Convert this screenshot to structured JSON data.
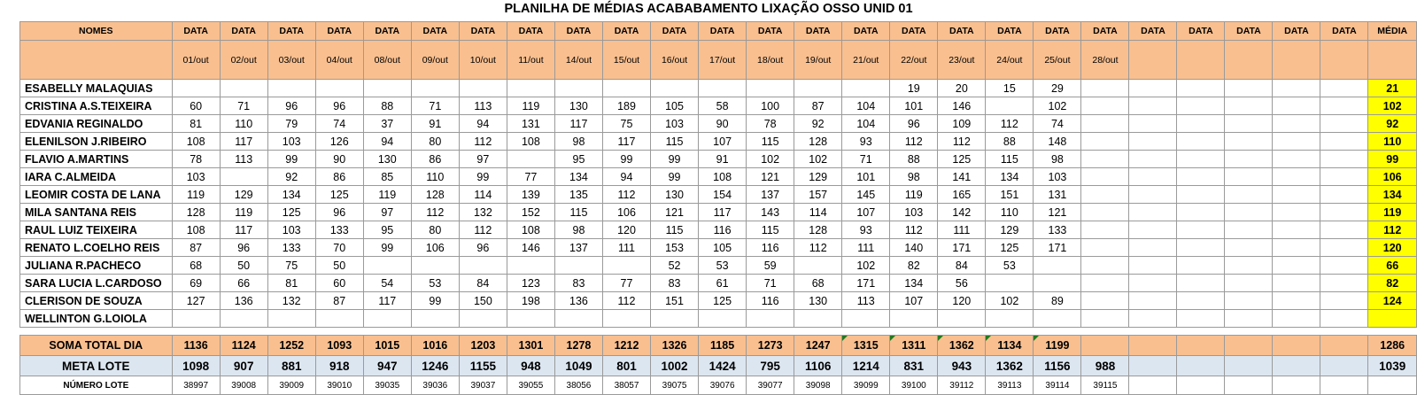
{
  "title": "PLANILHA DE MÉDIAS ACABABAMENTO LIXAÇÃO OSSO UNID 01",
  "headers": {
    "names": "NOMES",
    "data_label": "DATA",
    "media": "MÉDIA",
    "dates": [
      "01/out",
      "02/out",
      "03/out",
      "04/out",
      "08/out",
      "09/out",
      "10/out",
      "11/out",
      "14/out",
      "15/out",
      "16/out",
      "17/out",
      "18/out",
      "19/out",
      "21/out",
      "22/out",
      "23/out",
      "24/out",
      "25/out",
      "28/out",
      "",
      "",
      "",
      "",
      ""
    ]
  },
  "rows": [
    {
      "name": "ESABELLY MALAQUIAS",
      "values": [
        "",
        "",
        "",
        "",
        "",
        "",
        "",
        "",
        "",
        "",
        "",
        "",
        "",
        "",
        "",
        "19",
        "20",
        "15",
        "29",
        "",
        "",
        "",
        "",
        "",
        ""
      ],
      "avg": "21"
    },
    {
      "name": "CRISTINA A.S.TEIXEIRA",
      "values": [
        "60",
        "71",
        "96",
        "96",
        "88",
        "71",
        "113",
        "119",
        "130",
        "189",
        "105",
        "58",
        "100",
        "87",
        "104",
        "101",
        "146",
        "",
        "102",
        "",
        "",
        "",
        "",
        "",
        ""
      ],
      "avg": "102"
    },
    {
      "name": "EDVANIA REGINALDO",
      "values": [
        "81",
        "110",
        "79",
        "74",
        "37",
        "91",
        "94",
        "131",
        "117",
        "75",
        "103",
        "90",
        "78",
        "92",
        "104",
        "96",
        "109",
        "112",
        "74",
        "",
        "",
        "",
        "",
        "",
        ""
      ],
      "avg": "92"
    },
    {
      "name": "ELENILSON J.RIBEIRO",
      "values": [
        "108",
        "117",
        "103",
        "126",
        "94",
        "80",
        "112",
        "108",
        "98",
        "117",
        "115",
        "107",
        "115",
        "128",
        "93",
        "112",
        "112",
        "88",
        "148",
        "",
        "",
        "",
        "",
        "",
        ""
      ],
      "avg": "110"
    },
    {
      "name": "FLAVIO A.MARTINS",
      "values": [
        "78",
        "113",
        "99",
        "90",
        "130",
        "86",
        "97",
        "",
        "95",
        "99",
        "99",
        "91",
        "102",
        "102",
        "71",
        "88",
        "125",
        "115",
        "98",
        "",
        "",
        "",
        "",
        "",
        ""
      ],
      "avg": "99"
    },
    {
      "name": "IARA C.ALMEIDA",
      "values": [
        "103",
        "",
        "92",
        "86",
        "85",
        "110",
        "99",
        "77",
        "134",
        "94",
        "99",
        "108",
        "121",
        "129",
        "101",
        "98",
        "141",
        "134",
        "103",
        "",
        "",
        "",
        "",
        "",
        ""
      ],
      "avg": "106"
    },
    {
      "name": "LEOMIR COSTA DE LANA",
      "values": [
        "119",
        "129",
        "134",
        "125",
        "119",
        "128",
        "114",
        "139",
        "135",
        "112",
        "130",
        "154",
        "137",
        "157",
        "145",
        "119",
        "165",
        "151",
        "131",
        "",
        "",
        "",
        "",
        "",
        ""
      ],
      "avg": "134"
    },
    {
      "name": "MILA SANTANA REIS",
      "values": [
        "128",
        "119",
        "125",
        "96",
        "97",
        "112",
        "132",
        "152",
        "115",
        "106",
        "121",
        "117",
        "143",
        "114",
        "107",
        "103",
        "142",
        "110",
        "121",
        "",
        "",
        "",
        "",
        "",
        ""
      ],
      "avg": "119"
    },
    {
      "name": "RAUL LUIZ TEIXEIRA",
      "values": [
        "108",
        "117",
        "103",
        "133",
        "95",
        "80",
        "112",
        "108",
        "98",
        "120",
        "115",
        "116",
        "115",
        "128",
        "93",
        "112",
        "111",
        "129",
        "133",
        "",
        "",
        "",
        "",
        "",
        ""
      ],
      "avg": "112"
    },
    {
      "name": "RENATO L.COELHO REIS",
      "values": [
        "87",
        "96",
        "133",
        "70",
        "99",
        "106",
        "96",
        "146",
        "137",
        "111",
        "153",
        "105",
        "116",
        "112",
        "111",
        "140",
        "171",
        "125",
        "171",
        "",
        "",
        "",
        "",
        "",
        ""
      ],
      "avg": "120"
    },
    {
      "name": "JULIANA R.PACHECO",
      "values": [
        "68",
        "50",
        "75",
        "50",
        "",
        "",
        "",
        "",
        "",
        "",
        "52",
        "53",
        "59",
        "",
        "102",
        "82",
        "84",
        "53",
        "",
        "",
        "",
        "",
        "",
        "",
        ""
      ],
      "avg": "66"
    },
    {
      "name": "SARA LUCIA L.CARDOSO",
      "values": [
        "69",
        "66",
        "81",
        "60",
        "54",
        "53",
        "84",
        "123",
        "83",
        "77",
        "83",
        "61",
        "71",
        "68",
        "171",
        "134",
        "56",
        "",
        "",
        "",
        "",
        "",
        "",
        "",
        ""
      ],
      "avg": "82"
    },
    {
      "name": "CLERISON DE SOUZA",
      "values": [
        "127",
        "136",
        "132",
        "87",
        "117",
        "99",
        "150",
        "198",
        "136",
        "112",
        "151",
        "125",
        "116",
        "130",
        "113",
        "107",
        "120",
        "102",
        "89",
        "",
        "",
        "",
        "",
        "",
        ""
      ],
      "avg": "124"
    },
    {
      "name": "WELLINTON G.LOIOLA",
      "values": [
        "",
        "",
        "",
        "",
        "",
        "",
        "",
        "",
        "",
        "",
        "",
        "",
        "",
        "",
        "",
        "",
        "",
        "",
        "",
        "",
        "",
        "",
        "",
        "",
        ""
      ],
      "avg": ""
    }
  ],
  "soma": {
    "label": "SOMA TOTAL DIA",
    "values": [
      "1136",
      "1124",
      "1252",
      "1093",
      "1015",
      "1016",
      "1203",
      "1301",
      "1278",
      "1212",
      "1326",
      "1185",
      "1273",
      "1247",
      "1315",
      "1311",
      "1362",
      "1134",
      "1199",
      "",
      "",
      "",
      "",
      "",
      ""
    ],
    "total": "1286"
  },
  "meta": {
    "label": "META LOTE",
    "values": [
      "1098",
      "907",
      "881",
      "918",
      "947",
      "1246",
      "1155",
      "948",
      "1049",
      "801",
      "1002",
      "1424",
      "795",
      "1106",
      "1214",
      "831",
      "943",
      "1362",
      "1156",
      "988",
      "",
      "",
      "",
      "",
      ""
    ],
    "total": "1039"
  },
  "numero": {
    "label": "NÚMERO LOTE",
    "values": [
      "38997",
      "39008",
      "39009",
      "39010",
      "39035",
      "39036",
      "39037",
      "39055",
      "38056",
      "38057",
      "39075",
      "39076",
      "39077",
      "39098",
      "39099",
      "39100",
      "39112",
      "39113",
      "39114",
      "39115",
      "",
      "",
      "",
      "",
      ""
    ],
    "total": ""
  },
  "colors": {
    "header": "#f9bf8f",
    "average": "#ffff00",
    "meta": "#dce6f1"
  }
}
